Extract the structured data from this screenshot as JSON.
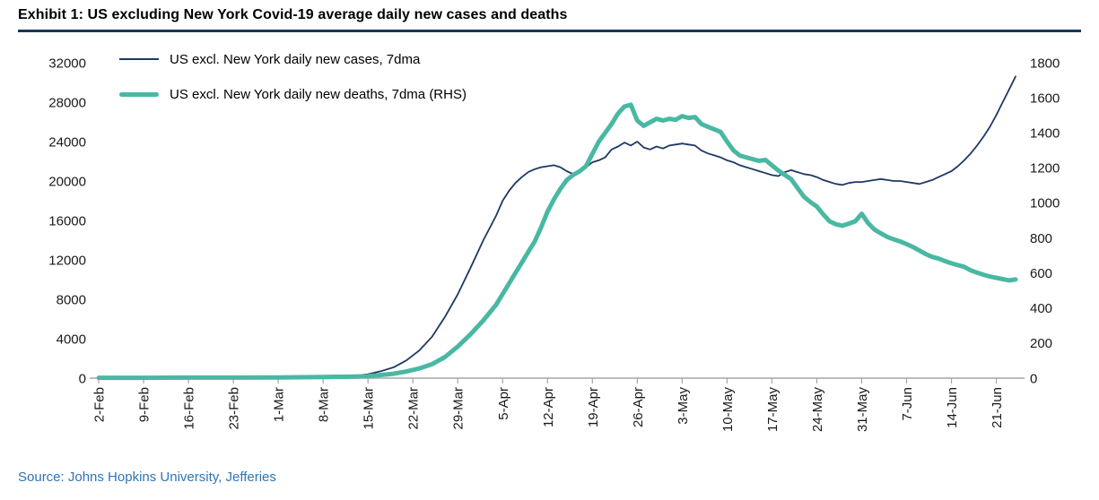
{
  "header": {
    "title": "Exhibit 1: US excluding New York Covid-19 average daily new cases and deaths"
  },
  "footer": {
    "source": "Source: Johns Hopkins University, Jefferies"
  },
  "legend": {
    "items": [
      {
        "label": "US excl. New York daily new cases, 7dma"
      },
      {
        "label": "US excl. New York daily new deaths, 7dma (RHS)"
      }
    ]
  },
  "colors": {
    "cases": "#1f3864",
    "deaths": "#49b8a3",
    "title_rule": "#17375e",
    "source_text": "#2e75b6",
    "axis": "#a6a6a6",
    "tick_text": "#1a1a1a"
  },
  "chart_data": {
    "type": "line",
    "title": "Exhibit 1: US excluding New York Covid-19 average daily new cases and deaths",
    "legend_position": "top-left",
    "grid": false,
    "x": {
      "tick_labels": [
        "2-Feb",
        "9-Feb",
        "16-Feb",
        "23-Feb",
        "1-Mar",
        "8-Mar",
        "15-Mar",
        "22-Mar",
        "29-Mar",
        "5-Apr",
        "12-Apr",
        "19-Apr",
        "26-Apr",
        "3-May",
        "10-May",
        "17-May",
        "24-May",
        "31-May",
        "7-Jun",
        "14-Jun",
        "21-Jun"
      ],
      "tick_days": [
        0,
        7,
        14,
        21,
        28,
        35,
        42,
        49,
        56,
        63,
        70,
        77,
        84,
        91,
        98,
        105,
        112,
        119,
        126,
        133,
        140
      ],
      "domain_days": [
        0,
        143
      ]
    },
    "left_axis": {
      "min": 0,
      "max": 32000,
      "step": 4000
    },
    "right_axis": {
      "min": 0,
      "max": 1800,
      "step": 200
    },
    "series": [
      {
        "name": "US excl. New York daily new cases, 7dma",
        "axis": "left",
        "color_key": "cases",
        "stroke_width": 1.8,
        "points": [
          [
            0,
            20
          ],
          [
            7,
            25
          ],
          [
            14,
            25
          ],
          [
            21,
            30
          ],
          [
            28,
            50
          ],
          [
            35,
            100
          ],
          [
            40,
            250
          ],
          [
            42,
            400
          ],
          [
            44,
            700
          ],
          [
            46,
            1100
          ],
          [
            48,
            1800
          ],
          [
            50,
            2800
          ],
          [
            52,
            4200
          ],
          [
            54,
            6200
          ],
          [
            56,
            8500
          ],
          [
            58,
            11200
          ],
          [
            60,
            14000
          ],
          [
            62,
            16500
          ],
          [
            63,
            18000
          ],
          [
            64,
            19000
          ],
          [
            65,
            19800
          ],
          [
            66,
            20400
          ],
          [
            67,
            20900
          ],
          [
            68,
            21200
          ],
          [
            69,
            21400
          ],
          [
            70,
            21500
          ],
          [
            71,
            21600
          ],
          [
            72,
            21400
          ],
          [
            73,
            21000
          ],
          [
            74,
            20700
          ],
          [
            75,
            20900
          ],
          [
            76,
            21400
          ],
          [
            77,
            21900
          ],
          [
            78,
            22100
          ],
          [
            79,
            22400
          ],
          [
            80,
            23200
          ],
          [
            81,
            23500
          ],
          [
            82,
            23900
          ],
          [
            83,
            23600
          ],
          [
            84,
            24000
          ],
          [
            85,
            23400
          ],
          [
            86,
            23200
          ],
          [
            87,
            23500
          ],
          [
            88,
            23300
          ],
          [
            89,
            23600
          ],
          [
            90,
            23700
          ],
          [
            91,
            23800
          ],
          [
            92,
            23700
          ],
          [
            93,
            23600
          ],
          [
            94,
            23100
          ],
          [
            95,
            22800
          ],
          [
            96,
            22600
          ],
          [
            97,
            22400
          ],
          [
            98,
            22100
          ],
          [
            99,
            21900
          ],
          [
            100,
            21600
          ],
          [
            101,
            21400
          ],
          [
            102,
            21200
          ],
          [
            103,
            21000
          ],
          [
            104,
            20800
          ],
          [
            105,
            20600
          ],
          [
            106,
            20500
          ],
          [
            107,
            20900
          ],
          [
            108,
            21100
          ],
          [
            109,
            20900
          ],
          [
            110,
            20700
          ],
          [
            111,
            20600
          ],
          [
            112,
            20400
          ],
          [
            113,
            20100
          ],
          [
            114,
            19900
          ],
          [
            115,
            19700
          ],
          [
            116,
            19600
          ],
          [
            117,
            19800
          ],
          [
            118,
            19900
          ],
          [
            119,
            19900
          ],
          [
            120,
            20000
          ],
          [
            121,
            20100
          ],
          [
            122,
            20200
          ],
          [
            123,
            20100
          ],
          [
            124,
            20000
          ],
          [
            125,
            20000
          ],
          [
            126,
            19900
          ],
          [
            127,
            19800
          ],
          [
            128,
            19700
          ],
          [
            129,
            19900
          ],
          [
            130,
            20100
          ],
          [
            131,
            20400
          ],
          [
            132,
            20700
          ],
          [
            133,
            21000
          ],
          [
            134,
            21500
          ],
          [
            135,
            22100
          ],
          [
            136,
            22800
          ],
          [
            137,
            23600
          ],
          [
            138,
            24500
          ],
          [
            139,
            25500
          ],
          [
            140,
            26700
          ],
          [
            141,
            28000
          ],
          [
            142,
            29300
          ],
          [
            143,
            30600
          ]
        ]
      },
      {
        "name": "US excl. New York daily new deaths, 7dma (RHS)",
        "axis": "right",
        "color_key": "deaths",
        "stroke_width": 5,
        "points": [
          [
            0,
            2
          ],
          [
            7,
            2
          ],
          [
            14,
            3
          ],
          [
            21,
            3
          ],
          [
            28,
            4
          ],
          [
            35,
            6
          ],
          [
            40,
            9
          ],
          [
            42,
            12
          ],
          [
            44,
            18
          ],
          [
            46,
            25
          ],
          [
            48,
            38
          ],
          [
            50,
            55
          ],
          [
            52,
            80
          ],
          [
            54,
            120
          ],
          [
            56,
            180
          ],
          [
            58,
            250
          ],
          [
            60,
            330
          ],
          [
            62,
            420
          ],
          [
            63,
            480
          ],
          [
            64,
            540
          ],
          [
            65,
            600
          ],
          [
            66,
            660
          ],
          [
            67,
            720
          ],
          [
            68,
            780
          ],
          [
            69,
            860
          ],
          [
            70,
            950
          ],
          [
            71,
            1020
          ],
          [
            72,
            1080
          ],
          [
            73,
            1130
          ],
          [
            74,
            1160
          ],
          [
            75,
            1180
          ],
          [
            76,
            1210
          ],
          [
            77,
            1280
          ],
          [
            78,
            1350
          ],
          [
            79,
            1400
          ],
          [
            80,
            1450
          ],
          [
            81,
            1510
          ],
          [
            82,
            1550
          ],
          [
            83,
            1560
          ],
          [
            84,
            1470
          ],
          [
            85,
            1440
          ],
          [
            86,
            1460
          ],
          [
            87,
            1480
          ],
          [
            88,
            1470
          ],
          [
            89,
            1480
          ],
          [
            90,
            1475
          ],
          [
            91,
            1495
          ],
          [
            92,
            1485
          ],
          [
            93,
            1490
          ],
          [
            94,
            1450
          ],
          [
            95,
            1435
          ],
          [
            96,
            1420
          ],
          [
            97,
            1405
          ],
          [
            98,
            1350
          ],
          [
            99,
            1300
          ],
          [
            100,
            1270
          ],
          [
            101,
            1260
          ],
          [
            102,
            1250
          ],
          [
            103,
            1240
          ],
          [
            104,
            1245
          ],
          [
            105,
            1215
          ],
          [
            106,
            1185
          ],
          [
            107,
            1160
          ],
          [
            108,
            1135
          ],
          [
            109,
            1085
          ],
          [
            110,
            1035
          ],
          [
            111,
            1005
          ],
          [
            112,
            980
          ],
          [
            113,
            935
          ],
          [
            114,
            895
          ],
          [
            115,
            878
          ],
          [
            116,
            870
          ],
          [
            117,
            882
          ],
          [
            118,
            895
          ],
          [
            119,
            938
          ],
          [
            120,
            885
          ],
          [
            121,
            848
          ],
          [
            122,
            826
          ],
          [
            123,
            806
          ],
          [
            124,
            792
          ],
          [
            125,
            780
          ],
          [
            126,
            765
          ],
          [
            127,
            748
          ],
          [
            128,
            728
          ],
          [
            129,
            708
          ],
          [
            130,
            692
          ],
          [
            131,
            682
          ],
          [
            132,
            668
          ],
          [
            133,
            655
          ],
          [
            134,
            645
          ],
          [
            135,
            635
          ],
          [
            136,
            615
          ],
          [
            137,
            602
          ],
          [
            138,
            590
          ],
          [
            139,
            580
          ],
          [
            140,
            572
          ],
          [
            141,
            565
          ],
          [
            142,
            558
          ],
          [
            143,
            563
          ]
        ]
      }
    ]
  }
}
